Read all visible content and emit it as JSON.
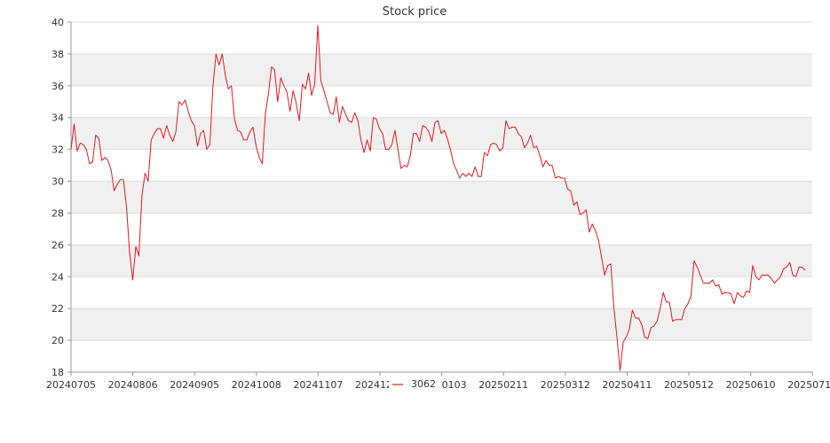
{
  "chart_data": {
    "type": "line",
    "title": "Stock price",
    "xlabel": "",
    "ylabel": "",
    "ylim": [
      18,
      40
    ],
    "yticks": [
      18,
      20,
      22,
      24,
      26,
      28,
      30,
      32,
      34,
      36,
      38,
      40
    ],
    "xticks": [
      "20240705",
      "20240806",
      "20240905",
      "20241008",
      "20241107",
      "20241209",
      "20250103",
      "20250211",
      "20250312",
      "20250411",
      "20250512",
      "20250610",
      "20250710"
    ],
    "grid": true,
    "legend_position": "bottom",
    "series": [
      {
        "name": "3062",
        "color": "#e31a1c",
        "values": [
          32.0,
          33.6,
          31.9,
          32.4,
          32.3,
          32.0,
          31.1,
          31.2,
          32.9,
          32.7,
          31.3,
          31.5,
          31.3,
          30.7,
          29.4,
          29.8,
          30.1,
          30.1,
          28.4,
          25.5,
          23.8,
          25.9,
          25.3,
          29.1,
          30.5,
          30.0,
          32.6,
          33.0,
          33.3,
          33.3,
          32.7,
          33.5,
          32.9,
          32.5,
          33.1,
          35.0,
          34.8,
          35.1,
          34.4,
          33.8,
          33.5,
          32.2,
          33.0,
          33.2,
          32.0,
          32.3,
          35.9,
          38.0,
          37.3,
          38.0,
          36.7,
          35.8,
          36.0,
          33.9,
          33.2,
          33.1,
          32.6,
          32.6,
          33.1,
          33.4,
          32.2,
          31.5,
          31.1,
          34.2,
          35.5,
          37.2,
          37.0,
          35.0,
          36.5,
          36.0,
          35.6,
          34.4,
          35.7,
          34.9,
          33.8,
          36.1,
          35.8,
          36.8,
          35.4,
          36.1,
          39.8,
          36.3,
          35.7,
          35.0,
          34.3,
          34.2,
          35.3,
          33.7,
          34.7,
          34.2,
          33.8,
          33.7,
          34.3,
          33.8,
          32.6,
          31.8,
          32.6,
          31.9,
          34.0,
          33.9,
          33.3,
          33.0,
          32.0,
          32.0,
          32.3,
          33.2,
          32.0,
          30.8,
          31.0,
          30.9,
          31.6,
          33.0,
          33.0,
          32.5,
          33.5,
          33.4,
          33.1,
          32.5,
          33.7,
          33.8,
          33.0,
          33.2,
          32.7,
          32.0,
          31.1,
          30.7,
          30.2,
          30.5,
          30.3,
          30.5,
          30.3,
          30.9,
          30.3,
          30.3,
          31.8,
          31.6,
          32.3,
          32.4,
          32.3,
          31.9,
          32.1,
          33.8,
          33.3,
          33.4,
          33.4,
          33.0,
          32.8,
          32.1,
          32.4,
          32.9,
          32.1,
          32.2,
          31.6,
          30.9,
          31.3,
          31.0,
          31.0,
          30.2,
          30.3,
          30.2,
          30.2,
          29.5,
          29.4,
          28.5,
          28.7,
          27.9,
          28.0,
          28.2,
          26.8,
          27.3,
          26.9,
          26.3,
          25.2,
          24.1,
          24.7,
          24.8,
          22.0,
          20.2,
          18.1,
          19.9,
          20.2,
          20.7,
          21.9,
          21.4,
          21.4,
          21.0,
          20.2,
          20.1,
          20.8,
          20.9,
          21.2,
          22.0,
          23.0,
          22.4,
          22.4,
          21.2,
          21.3,
          21.3,
          21.3,
          22.0,
          22.3,
          22.8,
          25.0,
          24.6,
          24.1,
          23.6,
          23.6,
          23.6,
          23.8,
          23.4,
          23.5,
          22.9,
          23.0,
          23.0,
          22.9,
          22.3,
          23.0,
          22.8,
          22.7,
          23.1,
          23.0,
          24.7,
          24.0,
          23.8,
          24.1,
          24.1,
          24.1,
          23.9,
          23.6,
          23.8,
          24.0,
          24.5,
          24.6,
          24.9,
          24.1,
          24.0,
          24.6,
          24.6,
          24.4
        ]
      }
    ]
  }
}
